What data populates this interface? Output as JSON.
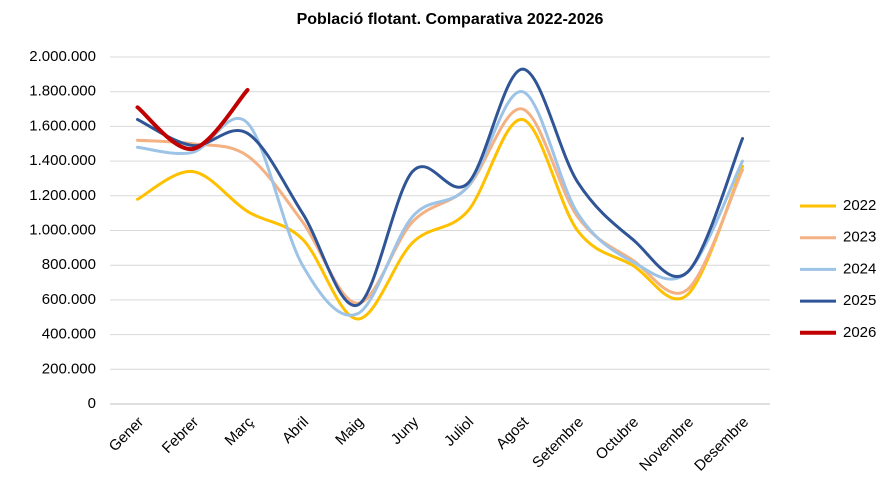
{
  "chart_data": {
    "type": "line",
    "title": "Població flotant. Comparativa 2022-2026",
    "categories": [
      "Gener",
      "Febrer",
      "Març",
      "Abril",
      "Maig",
      "Juny",
      "Juliol",
      "Agost",
      "Setembre",
      "Octubre",
      "Novembre",
      "Desembre"
    ],
    "series": [
      {
        "name": "2022",
        "color": "#ffc000",
        "values": [
          1180000,
          1340000,
          1110000,
          950000,
          490000,
          930000,
          1110000,
          1640000,
          1000000,
          800000,
          630000,
          1370000
        ]
      },
      {
        "name": "2023",
        "color": "#f4b183",
        "values": [
          1520000,
          1500000,
          1430000,
          1050000,
          580000,
          1050000,
          1250000,
          1700000,
          1080000,
          830000,
          660000,
          1350000
        ]
      },
      {
        "name": "2024",
        "color": "#9dc3e6",
        "values": [
          1480000,
          1450000,
          1620000,
          800000,
          520000,
          1080000,
          1250000,
          1800000,
          1100000,
          820000,
          760000,
          1400000
        ]
      },
      {
        "name": "2025",
        "color": "#2f5597",
        "values": [
          1640000,
          1490000,
          1560000,
          1100000,
          570000,
          1340000,
          1270000,
          1930000,
          1280000,
          950000,
          760000,
          1530000
        ]
      },
      {
        "name": "2026",
        "color": "#c00000",
        "values": [
          1710000,
          1470000,
          1810000,
          null,
          null,
          null,
          null,
          null,
          null,
          null,
          null,
          null
        ]
      }
    ],
    "ylim": [
      0,
      2000000
    ],
    "yticks": [
      0,
      {
        "value": 200000,
        "label": "200.000"
      },
      {
        "value": 400000,
        "label": "400.000"
      },
      {
        "value": 600000,
        "label": "600.000"
      },
      {
        "value": 800000,
        "label": "800.000"
      },
      {
        "value": 1000000,
        "label": "1.000.000"
      },
      {
        "value": 1200000,
        "label": "1.200.000"
      },
      {
        "value": 1400000,
        "label": "1.400.000"
      },
      {
        "value": 1600000,
        "label": "1.600.000"
      },
      {
        "value": 1800000,
        "label": "1.800.000"
      },
      {
        "value": 2000000,
        "label": "2.000.000"
      }
    ],
    "grid": true,
    "legend": "right"
  }
}
